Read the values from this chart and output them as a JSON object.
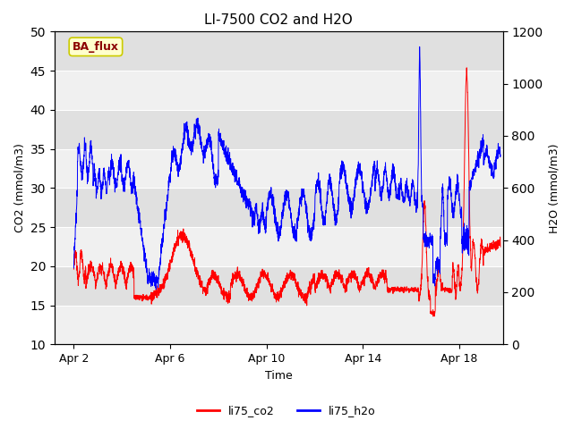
{
  "title": "LI-7500 CO2 and H2O",
  "xlabel": "Time",
  "ylabel_left": "CO2 (mmol/m3)",
  "ylabel_right": "H2O (mmol/m3)",
  "ylim_left": [
    10,
    50
  ],
  "ylim_right": [
    0,
    1200
  ],
  "yticks_left": [
    10,
    15,
    20,
    25,
    30,
    35,
    40,
    45,
    50
  ],
  "yticks_right": [
    0,
    200,
    400,
    600,
    800,
    1000,
    1200
  ],
  "xtick_labels": [
    "Apr 2",
    "Apr 6",
    "Apr 10",
    "Apr 14",
    "Apr 18"
  ],
  "xtick_positions": [
    2,
    6,
    10,
    14,
    18
  ],
  "xlim": [
    1.2,
    19.8
  ],
  "legend_labels": [
    "li75_co2",
    "li75_h2o"
  ],
  "legend_colors": [
    "red",
    "blue"
  ],
  "badge_text": "BA_flux",
  "badge_bg": "#ffffcc",
  "badge_border": "#cccc00",
  "badge_text_color": "#8b0000",
  "co2_color": "red",
  "h2o_color": "blue",
  "fig_bg_color": "#ffffff",
  "plot_bg_color": "#e8e8e8",
  "band_light": "#f0f0f0",
  "band_dark": "#e0e0e0",
  "grid_color": "white"
}
